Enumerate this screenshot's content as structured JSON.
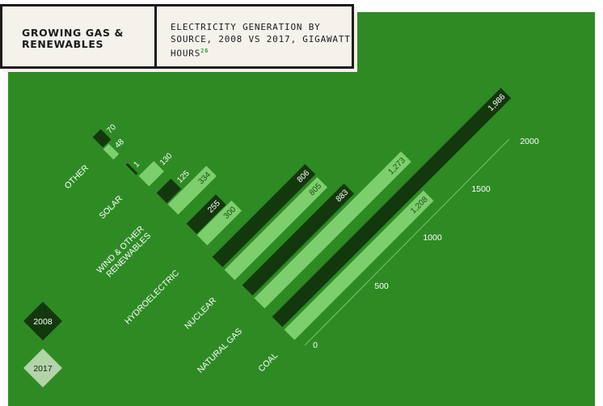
{
  "header": {
    "title": "GROWING GAS & RENEWABLES",
    "subtitle": "ELECTRICITY GENERATION BY SOURCE, 2008 VS 2017, GIGAWATT HOURS",
    "footnote": "26"
  },
  "colors": {
    "background": "#2e8b24",
    "series_2008": "#14380e",
    "series_2017": "#7ccf6c",
    "legend_2017": "#b3d4a8"
  },
  "chart_data": {
    "type": "bar",
    "title": "ELECTRICITY GENERATION BY SOURCE, 2008 VS 2017, GIGAWATT HOURS",
    "categories": [
      "OTHER",
      "SOLAR",
      "WIND & OTHER RENEWABLES",
      "HYDROELECTRIC",
      "NUCLEAR",
      "NATURAL GAS",
      "COAL"
    ],
    "series": [
      {
        "name": "2008",
        "values": [
          70,
          1,
          125,
          255,
          806,
          883,
          1986
        ],
        "labels": [
          "70",
          "1",
          "125",
          "255",
          "806",
          "883",
          "1,986"
        ]
      },
      {
        "name": "2017",
        "values": [
          48,
          130,
          334,
          300,
          805,
          1273,
          1208
        ],
        "labels": [
          "48",
          "130",
          "334",
          "300",
          "805",
          "1,273",
          "1,208"
        ]
      }
    ],
    "axis": {
      "min": 0,
      "max": 2000,
      "ticks": [
        0,
        500,
        1000,
        1500,
        2000
      ],
      "tick_labels": [
        "0",
        "500",
        "1000",
        "1500",
        "2000"
      ]
    },
    "legend": {
      "position": "bottom-left",
      "entries": [
        "2008",
        "2017"
      ]
    }
  }
}
